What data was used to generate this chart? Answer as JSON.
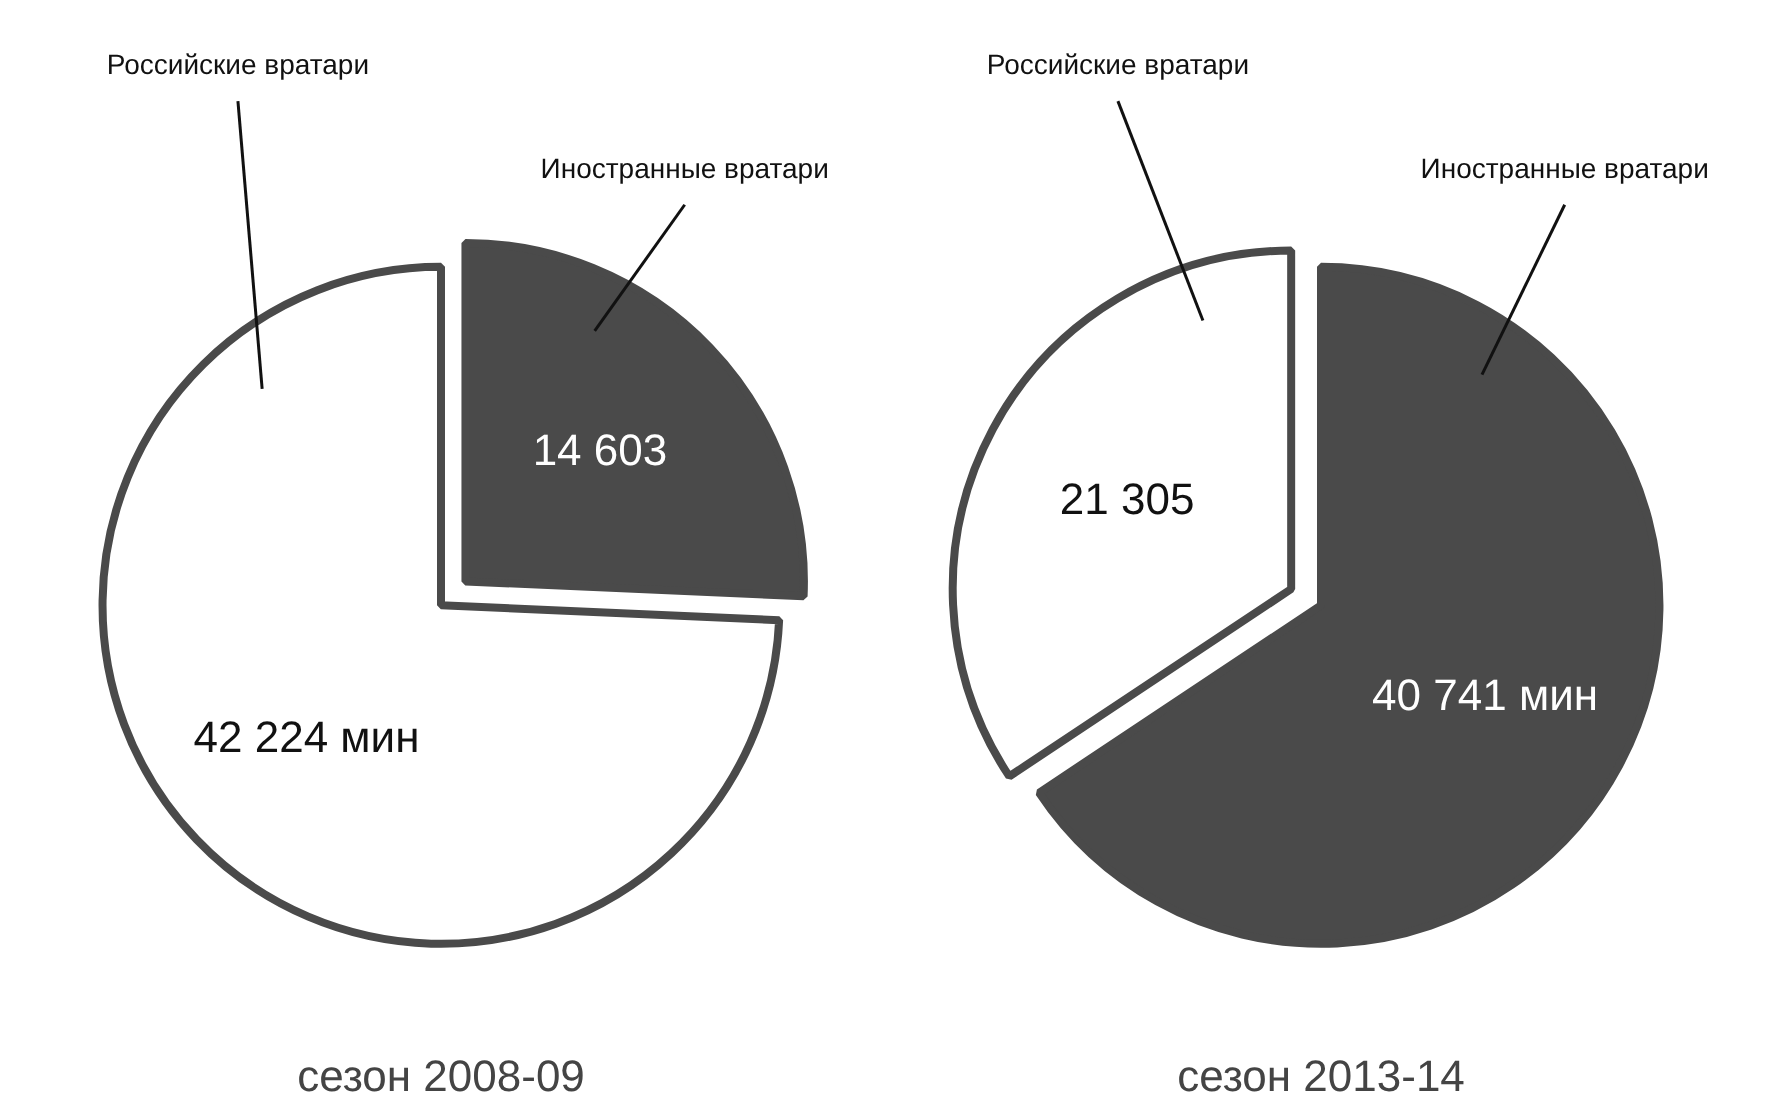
{
  "chart_data": [
    {
      "type": "pie",
      "title": "сезон 2008-09",
      "categories": [
        "Российские вратари",
        "Иностранные вратари"
      ],
      "values": [
        42224,
        14603
      ],
      "value_labels": [
        "42 224 мин",
        "14 603"
      ],
      "colors": [
        "#ffffff",
        "#4a4a4a"
      ]
    },
    {
      "type": "pie",
      "title": "сезон 2013-14",
      "categories": [
        "Российские вратари",
        "Иностранные вратари"
      ],
      "values": [
        21305,
        40741
      ],
      "value_labels": [
        "21 305",
        "40 741 мин"
      ],
      "colors": [
        "#ffffff",
        "#4a4a4a"
      ]
    }
  ]
}
